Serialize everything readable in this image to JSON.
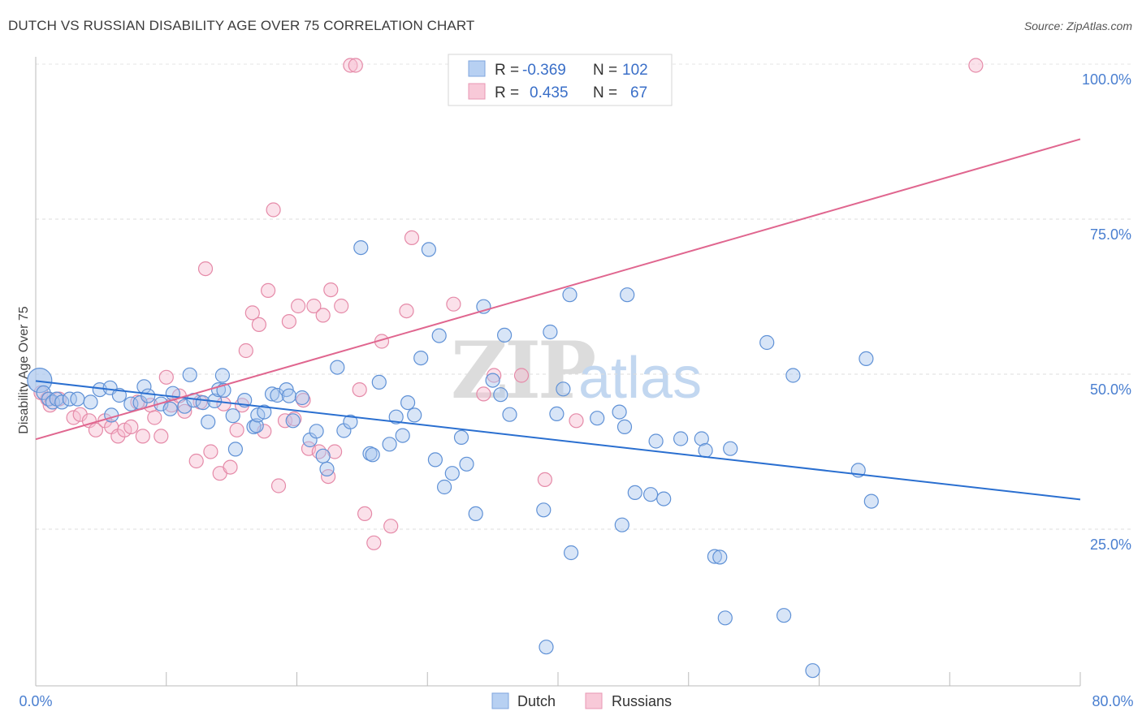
{
  "header": {
    "title": "DUTCH VS RUSSIAN DISABILITY AGE OVER 75 CORRELATION CHART",
    "source": "Source: ZipAtlas.com"
  },
  "watermark": {
    "zip": "ZIP",
    "atlas": "atlas"
  },
  "legend": {
    "dutch": {
      "r_label": "R =",
      "r_value": "-0.369",
      "n_label": "N =",
      "n_value": "102"
    },
    "russians": {
      "r_label": "R =",
      "r_value": "0.435",
      "n_label": "N =",
      "n_value": "67"
    }
  },
  "colors": {
    "dutch_fill": "#a9c6ee",
    "dutch_stroke": "#5f91d6",
    "dutch_line": "#2a6fd0",
    "russian_fill": "#f6bcd0",
    "russian_stroke": "#e58aa8",
    "russian_line": "#e0668f",
    "tick_label": "#4a7fd0"
  },
  "chart_data": {
    "type": "scatter",
    "title": "DUTCH VS RUSSIAN DISABILITY AGE OVER 75 CORRELATION CHART",
    "xlabel": "",
    "ylabel": "Disability Age Over 75",
    "xlim": [
      0,
      80
    ],
    "ylim": [
      0,
      105
    ],
    "x_tick_labels": [
      "0.0%",
      "80.0%"
    ],
    "y_tick_values": [
      25,
      50,
      75,
      100
    ],
    "y_tick_labels": [
      "25.0%",
      "50.0%",
      "75.0%",
      "100.0%"
    ],
    "grid": "horizontal dashed",
    "legend_position": "top-center",
    "series": [
      {
        "name": "Dutch",
        "r": -0.369,
        "n": 102,
        "trend": {
          "x": [
            0,
            80
          ],
          "y": [
            48.9,
            29.8
          ]
        },
        "points": [
          [
            0.3,
            49
          ],
          [
            0.6,
            47
          ],
          [
            1.0,
            46
          ],
          [
            1.3,
            45.5
          ],
          [
            1.6,
            46
          ],
          [
            2.0,
            45.5
          ],
          [
            2.6,
            46
          ],
          [
            3.2,
            46
          ],
          [
            4.2,
            45.5
          ],
          [
            4.9,
            47.5
          ],
          [
            5.7,
            47.8
          ],
          [
            5.8,
            43.4
          ],
          [
            6.4,
            46.6
          ],
          [
            7.3,
            45.2
          ],
          [
            8.0,
            45.4
          ],
          [
            8.3,
            48
          ],
          [
            8.6,
            46.5
          ],
          [
            9.6,
            45.2
          ],
          [
            10.3,
            44.4
          ],
          [
            10.5,
            46.9
          ],
          [
            11.4,
            44.8
          ],
          [
            11.8,
            49.9
          ],
          [
            12.1,
            45.8
          ],
          [
            12.8,
            45.4
          ],
          [
            13.2,
            42.3
          ],
          [
            13.7,
            45.7
          ],
          [
            14.0,
            47.5
          ],
          [
            14.3,
            49.8
          ],
          [
            14.4,
            47.4
          ],
          [
            15.1,
            43.3
          ],
          [
            15.3,
            37.9
          ],
          [
            16.0,
            45.8
          ],
          [
            16.7,
            41.5
          ],
          [
            16.9,
            41.7
          ],
          [
            17.0,
            43.4
          ],
          [
            17.5,
            43.9
          ],
          [
            18.1,
            46.8
          ],
          [
            18.5,
            46.6
          ],
          [
            19.2,
            47.5
          ],
          [
            19.4,
            46.5
          ],
          [
            19.7,
            42.5
          ],
          [
            20.4,
            46.2
          ],
          [
            21.0,
            39.4
          ],
          [
            21.5,
            40.8
          ],
          [
            22.0,
            36.8
          ],
          [
            22.3,
            34.7
          ],
          [
            23.1,
            51.1
          ],
          [
            23.6,
            40.9
          ],
          [
            24.1,
            42.3
          ],
          [
            24.9,
            70.4
          ],
          [
            25.6,
            37.2
          ],
          [
            25.8,
            37.0
          ],
          [
            26.3,
            48.7
          ],
          [
            27.1,
            38.7
          ],
          [
            27.6,
            43.1
          ],
          [
            28.1,
            40.1
          ],
          [
            28.5,
            45.4
          ],
          [
            29.0,
            43.4
          ],
          [
            29.5,
            52.6
          ],
          [
            30.1,
            70.1
          ],
          [
            30.6,
            36.2
          ],
          [
            30.9,
            56.2
          ],
          [
            31.3,
            31.8
          ],
          [
            31.9,
            34
          ],
          [
            32.6,
            39.8
          ],
          [
            33.0,
            35.5
          ],
          [
            33.7,
            27.5
          ],
          [
            34.3,
            60.9
          ],
          [
            35.0,
            49.0
          ],
          [
            35.6,
            46.7
          ],
          [
            35.9,
            56.3
          ],
          [
            36.3,
            43.5
          ],
          [
            38.9,
            28.1
          ],
          [
            39.1,
            6.0
          ],
          [
            39.4,
            56.8
          ],
          [
            39.9,
            43.6
          ],
          [
            40.4,
            47.6
          ],
          [
            40.9,
            62.8
          ],
          [
            41.0,
            21.2
          ],
          [
            43.0,
            42.9
          ],
          [
            44.7,
            43.9
          ],
          [
            44.9,
            25.7
          ],
          [
            45.1,
            41.5
          ],
          [
            45.3,
            62.8
          ],
          [
            45.9,
            30.9
          ],
          [
            47.1,
            30.6
          ],
          [
            47.5,
            39.2
          ],
          [
            48.1,
            29.9
          ],
          [
            49.4,
            39.6
          ],
          [
            51.0,
            39.6
          ],
          [
            51.3,
            37.7
          ],
          [
            52.0,
            20.6
          ],
          [
            52.4,
            20.5
          ],
          [
            52.8,
            10.7
          ],
          [
            53.2,
            38.0
          ],
          [
            56.0,
            55.1
          ],
          [
            57.3,
            11.1
          ],
          [
            58.0,
            49.8
          ],
          [
            59.5,
            2.2
          ],
          [
            63.0,
            34.5
          ],
          [
            63.6,
            52.5
          ],
          [
            64.0,
            29.5
          ]
        ]
      },
      {
        "name": "Russians",
        "r": 0.435,
        "n": 67,
        "trend": {
          "x": [
            0,
            80
          ],
          "y": [
            39.5,
            87.9
          ]
        },
        "points": [
          [
            0.4,
            47.0
          ],
          [
            0.9,
            46.0
          ],
          [
            1.1,
            45.0
          ],
          [
            1.8,
            46.0
          ],
          [
            2.9,
            43.0
          ],
          [
            3.4,
            43.5
          ],
          [
            4.1,
            42.5
          ],
          [
            4.6,
            41.0
          ],
          [
            5.3,
            42.5
          ],
          [
            5.8,
            41.5
          ],
          [
            6.3,
            40.0
          ],
          [
            6.8,
            41.0
          ],
          [
            7.3,
            41.5
          ],
          [
            7.8,
            45.5
          ],
          [
            8.2,
            40.0
          ],
          [
            8.8,
            45.0
          ],
          [
            9.1,
            43.0
          ],
          [
            9.6,
            40.0
          ],
          [
            10.0,
            49.5
          ],
          [
            10.4,
            45.0
          ],
          [
            11.0,
            46.5
          ],
          [
            11.4,
            44.0
          ],
          [
            12.3,
            36.0
          ],
          [
            12.6,
            45.5
          ],
          [
            13.0,
            67.0
          ],
          [
            13.4,
            37.5
          ],
          [
            14.1,
            34.0
          ],
          [
            14.4,
            45.2
          ],
          [
            14.9,
            35.0
          ],
          [
            15.4,
            41.0
          ],
          [
            15.8,
            45.0
          ],
          [
            16.1,
            53.8
          ],
          [
            16.6,
            59.9
          ],
          [
            17.1,
            58.0
          ],
          [
            17.5,
            40.8
          ],
          [
            17.8,
            63.5
          ],
          [
            18.2,
            76.5
          ],
          [
            18.6,
            32.0
          ],
          [
            19.1,
            42.5
          ],
          [
            19.4,
            58.5
          ],
          [
            19.8,
            42.8
          ],
          [
            20.1,
            61.0
          ],
          [
            20.5,
            45.8
          ],
          [
            20.9,
            38.0
          ],
          [
            21.3,
            61.0
          ],
          [
            21.7,
            37.5
          ],
          [
            22.0,
            59.5
          ],
          [
            22.4,
            33.5
          ],
          [
            22.6,
            63.6
          ],
          [
            22.9,
            37.5
          ],
          [
            23.4,
            61.0
          ],
          [
            24.1,
            99.8
          ],
          [
            24.5,
            99.8
          ],
          [
            24.8,
            47.5
          ],
          [
            25.2,
            27.5
          ],
          [
            25.9,
            22.8
          ],
          [
            26.5,
            55.3
          ],
          [
            27.2,
            25.5
          ],
          [
            28.4,
            60.2
          ],
          [
            28.8,
            72.0
          ],
          [
            32.0,
            61.3
          ],
          [
            34.3,
            46.8
          ],
          [
            35.1,
            49.8
          ],
          [
            37.2,
            49.8
          ],
          [
            39.0,
            33.0
          ],
          [
            41.4,
            42.5
          ],
          [
            72.0,
            99.8
          ]
        ]
      }
    ]
  },
  "bottom_legend": {
    "dutch_label": "Dutch",
    "russians_label": "Russians"
  }
}
